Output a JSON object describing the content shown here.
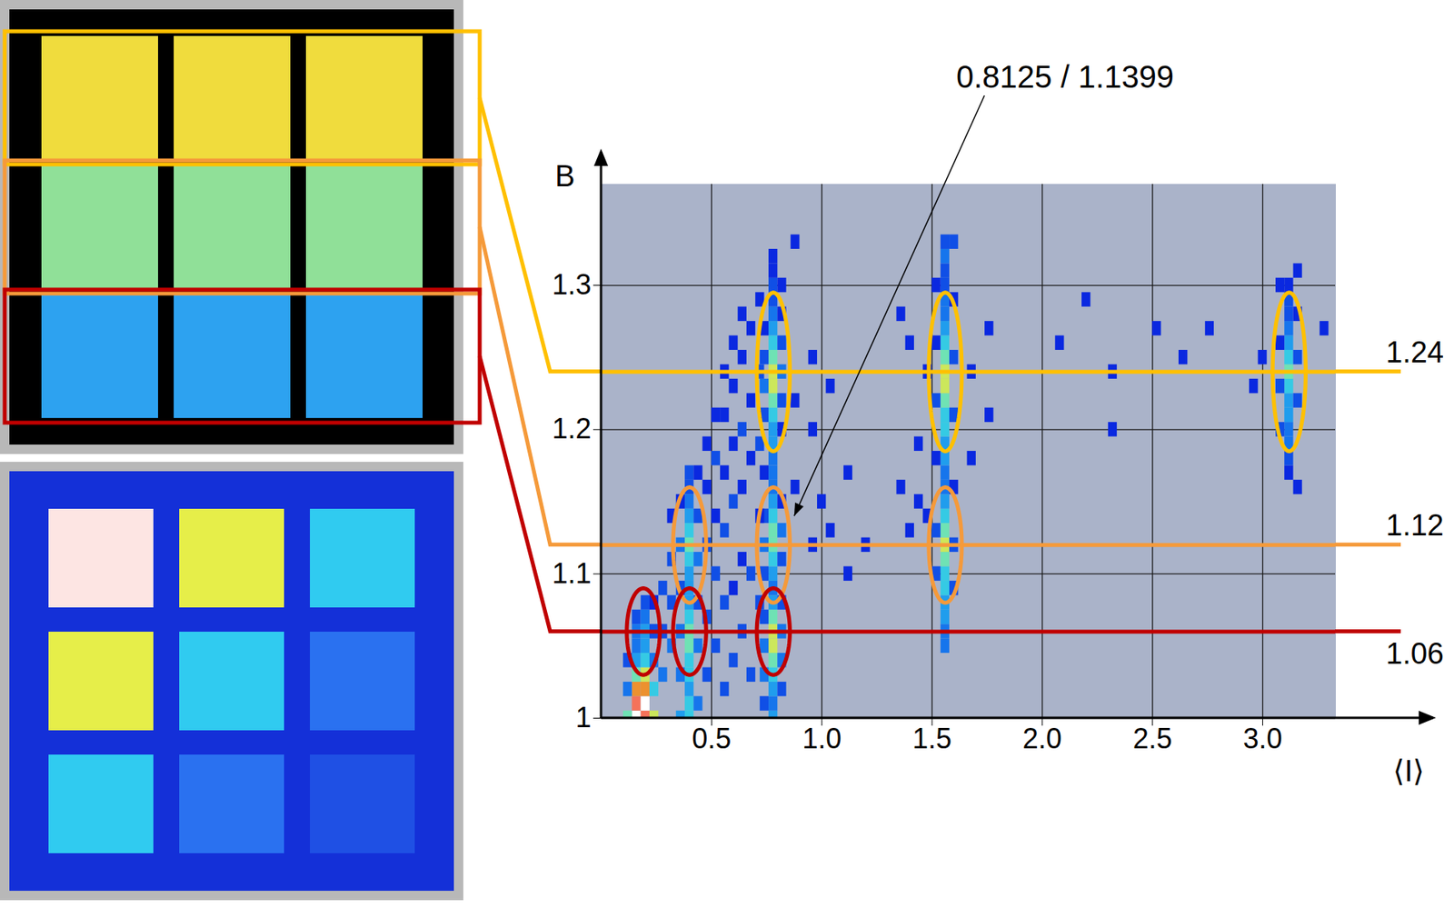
{
  "chart_data": {
    "type": "heatmap",
    "xlabel": "⟨I⟩",
    "ylabel": "B",
    "xlim": [
      0,
      3.33
    ],
    "ylim": [
      1,
      1.37
    ],
    "xticks": [
      0.5,
      {
        "value": 1,
        "label": "1.0"
      },
      1.5,
      {
        "value": 2,
        "label": "2.0"
      },
      2.5,
      {
        "value": 3,
        "label": "3.0"
      }
    ],
    "yticks": [
      1,
      1.1,
      1.2,
      1.3
    ],
    "grid": true,
    "cell_width": 0.04,
    "cell_height": 0.01,
    "cell_range": [
      1,
      10
    ],
    "cells": [
      [
        0.78,
        1.0,
        4
      ],
      [
        0.78,
        1.01,
        3
      ],
      [
        0.78,
        1.02,
        4
      ],
      [
        0.78,
        1.03,
        5
      ],
      [
        0.78,
        1.04,
        6
      ],
      [
        0.78,
        1.05,
        7
      ],
      [
        0.78,
        1.06,
        7
      ],
      [
        0.78,
        1.07,
        6
      ],
      [
        0.78,
        1.08,
        4
      ],
      [
        0.78,
        1.09,
        3
      ],
      [
        0.78,
        1.1,
        4
      ],
      [
        0.78,
        1.11,
        5
      ],
      [
        0.78,
        1.12,
        6
      ],
      [
        0.78,
        1.13,
        6
      ],
      [
        0.78,
        1.14,
        5
      ],
      [
        0.78,
        1.15,
        4
      ],
      [
        0.78,
        1.16,
        3
      ],
      [
        0.78,
        1.17,
        3
      ],
      [
        0.78,
        1.18,
        3
      ],
      [
        0.78,
        1.19,
        4
      ],
      [
        0.78,
        1.2,
        4
      ],
      [
        0.78,
        1.21,
        5
      ],
      [
        0.78,
        1.22,
        6
      ],
      [
        0.78,
        1.23,
        7
      ],
      [
        0.78,
        1.24,
        7
      ],
      [
        0.78,
        1.25,
        6
      ],
      [
        0.78,
        1.26,
        5
      ],
      [
        0.78,
        1.27,
        4
      ],
      [
        0.78,
        1.28,
        3
      ],
      [
        0.78,
        1.29,
        2
      ],
      [
        0.78,
        1.3,
        2
      ],
      [
        0.78,
        1.31,
        1
      ],
      [
        0.78,
        1.32,
        1
      ],
      [
        0.74,
        1.01,
        2
      ],
      [
        0.74,
        1.03,
        3
      ],
      [
        0.74,
        1.05,
        3
      ],
      [
        0.74,
        1.07,
        2
      ],
      [
        0.74,
        1.1,
        2
      ],
      [
        0.74,
        1.12,
        3
      ],
      [
        0.74,
        1.14,
        2
      ],
      [
        0.74,
        1.17,
        1
      ],
      [
        0.74,
        1.21,
        2
      ],
      [
        0.74,
        1.23,
        3
      ],
      [
        0.74,
        1.25,
        2
      ],
      [
        0.74,
        1.27,
        1
      ],
      [
        0.82,
        1.02,
        2
      ],
      [
        0.82,
        1.04,
        3
      ],
      [
        0.82,
        1.06,
        3
      ],
      [
        0.82,
        1.08,
        2
      ],
      [
        0.82,
        1.11,
        2
      ],
      [
        0.82,
        1.13,
        3
      ],
      [
        0.82,
        1.15,
        1
      ],
      [
        0.82,
        1.2,
        1
      ],
      [
        0.82,
        1.22,
        2
      ],
      [
        0.82,
        1.24,
        3
      ],
      [
        0.82,
        1.26,
        2
      ],
      [
        0.82,
        1.28,
        1
      ],
      [
        0.82,
        1.3,
        1
      ],
      [
        1.56,
        1.05,
        3
      ],
      [
        1.56,
        1.06,
        3
      ],
      [
        1.56,
        1.07,
        4
      ],
      [
        1.56,
        1.08,
        4
      ],
      [
        1.56,
        1.09,
        5
      ],
      [
        1.56,
        1.1,
        5
      ],
      [
        1.56,
        1.11,
        6
      ],
      [
        1.56,
        1.12,
        7
      ],
      [
        1.56,
        1.13,
        6
      ],
      [
        1.56,
        1.14,
        5
      ],
      [
        1.56,
        1.15,
        4
      ],
      [
        1.56,
        1.16,
        3
      ],
      [
        1.56,
        1.17,
        3
      ],
      [
        1.56,
        1.18,
        4
      ],
      [
        1.56,
        1.19,
        4
      ],
      [
        1.56,
        1.2,
        5
      ],
      [
        1.56,
        1.21,
        5
      ],
      [
        1.56,
        1.22,
        6
      ],
      [
        1.56,
        1.23,
        7
      ],
      [
        1.56,
        1.24,
        7
      ],
      [
        1.56,
        1.25,
        6
      ],
      [
        1.56,
        1.26,
        5
      ],
      [
        1.56,
        1.27,
        4
      ],
      [
        1.56,
        1.28,
        3
      ],
      [
        1.56,
        1.29,
        3
      ],
      [
        1.56,
        1.3,
        2
      ],
      [
        1.56,
        1.31,
        2
      ],
      [
        1.56,
        1.32,
        3
      ],
      [
        1.56,
        1.33,
        2
      ],
      [
        1.52,
        1.1,
        2
      ],
      [
        1.52,
        1.13,
        2
      ],
      [
        1.52,
        1.18,
        1
      ],
      [
        1.52,
        1.22,
        2
      ],
      [
        1.52,
        1.26,
        1
      ],
      [
        1.52,
        1.3,
        1
      ],
      [
        1.6,
        1.09,
        2
      ],
      [
        1.6,
        1.12,
        2
      ],
      [
        1.6,
        1.16,
        1
      ],
      [
        1.6,
        1.21,
        2
      ],
      [
        1.6,
        1.25,
        2
      ],
      [
        1.6,
        1.29,
        1
      ],
      [
        1.6,
        1.33,
        2
      ],
      [
        3.12,
        1.17,
        1
      ],
      [
        3.12,
        1.18,
        2
      ],
      [
        3.12,
        1.19,
        3
      ],
      [
        3.12,
        1.2,
        3
      ],
      [
        3.12,
        1.21,
        4
      ],
      [
        3.12,
        1.22,
        4
      ],
      [
        3.12,
        1.23,
        5
      ],
      [
        3.12,
        1.24,
        6
      ],
      [
        3.12,
        1.25,
        5
      ],
      [
        3.12,
        1.26,
        4
      ],
      [
        3.12,
        1.27,
        3
      ],
      [
        3.12,
        1.28,
        2
      ],
      [
        3.12,
        1.29,
        2
      ],
      [
        3.12,
        1.3,
        1
      ],
      [
        3.08,
        1.2,
        2
      ],
      [
        3.08,
        1.23,
        2
      ],
      [
        3.08,
        1.26,
        1
      ],
      [
        3.08,
        1.3,
        1
      ],
      [
        3.16,
        1.16,
        1
      ],
      [
        3.16,
        1.22,
        2
      ],
      [
        3.16,
        1.25,
        2
      ],
      [
        3.16,
        1.28,
        1
      ],
      [
        3.16,
        1.31,
        1
      ],
      [
        0.4,
        1.0,
        5
      ],
      [
        0.4,
        1.01,
        5
      ],
      [
        0.4,
        1.02,
        4
      ],
      [
        0.4,
        1.03,
        5
      ],
      [
        0.4,
        1.04,
        5
      ],
      [
        0.4,
        1.05,
        6
      ],
      [
        0.4,
        1.06,
        6
      ],
      [
        0.4,
        1.07,
        5
      ],
      [
        0.4,
        1.08,
        4
      ],
      [
        0.4,
        1.09,
        4
      ],
      [
        0.4,
        1.1,
        4
      ],
      [
        0.4,
        1.11,
        5
      ],
      [
        0.4,
        1.12,
        6
      ],
      [
        0.4,
        1.13,
        5
      ],
      [
        0.4,
        1.14,
        4
      ],
      [
        0.4,
        1.15,
        3
      ],
      [
        0.4,
        1.16,
        2
      ],
      [
        0.4,
        1.17,
        2
      ],
      [
        0.36,
        1.0,
        4
      ],
      [
        0.36,
        1.03,
        3
      ],
      [
        0.36,
        1.06,
        3
      ],
      [
        0.36,
        1.09,
        2
      ],
      [
        0.36,
        1.12,
        3
      ],
      [
        0.36,
        1.15,
        1
      ],
      [
        0.44,
        1.01,
        3
      ],
      [
        0.44,
        1.05,
        3
      ],
      [
        0.44,
        1.08,
        2
      ],
      [
        0.44,
        1.11,
        3
      ],
      [
        0.44,
        1.14,
        2
      ],
      [
        0.44,
        1.17,
        1
      ],
      [
        0.16,
        1.0,
        10
      ],
      [
        0.16,
        1.01,
        9
      ],
      [
        0.16,
        1.02,
        8
      ],
      [
        0.16,
        1.03,
        6
      ],
      [
        0.16,
        1.04,
        4
      ],
      [
        0.16,
        1.05,
        3
      ],
      [
        0.16,
        1.06,
        3
      ],
      [
        0.16,
        1.07,
        2
      ],
      [
        0.2,
        1.0,
        9
      ],
      [
        0.2,
        1.01,
        10
      ],
      [
        0.2,
        1.02,
        8
      ],
      [
        0.2,
        1.03,
        7
      ],
      [
        0.2,
        1.04,
        5
      ],
      [
        0.2,
        1.05,
        4
      ],
      [
        0.2,
        1.06,
        4
      ],
      [
        0.2,
        1.07,
        3
      ],
      [
        0.2,
        1.08,
        2
      ],
      [
        0.24,
        1.0,
        7
      ],
      [
        0.24,
        1.02,
        5
      ],
      [
        0.24,
        1.04,
        3
      ],
      [
        0.24,
        1.06,
        2
      ],
      [
        0.24,
        1.08,
        1
      ],
      [
        0.12,
        1.0,
        6
      ],
      [
        0.12,
        1.02,
        3
      ],
      [
        0.12,
        1.04,
        2
      ],
      [
        0.28,
        1.03,
        3
      ],
      [
        0.28,
        1.06,
        2
      ],
      [
        0.28,
        1.09,
        2
      ],
      [
        0.32,
        1.05,
        3
      ],
      [
        0.32,
        1.08,
        2
      ],
      [
        0.32,
        1.11,
        2
      ],
      [
        0.32,
        1.14,
        1
      ],
      [
        0.48,
        1.03,
        2
      ],
      [
        0.48,
        1.07,
        2
      ],
      [
        0.48,
        1.12,
        2
      ],
      [
        0.48,
        1.16,
        1
      ],
      [
        0.48,
        1.19,
        1
      ],
      [
        0.52,
        1.05,
        2
      ],
      [
        0.52,
        1.1,
        2
      ],
      [
        0.52,
        1.14,
        1
      ],
      [
        0.52,
        1.18,
        2
      ],
      [
        0.52,
        1.21,
        1
      ],
      [
        0.56,
        1.02,
        2
      ],
      [
        0.56,
        1.08,
        2
      ],
      [
        0.56,
        1.13,
        2
      ],
      [
        0.56,
        1.17,
        1
      ],
      [
        0.56,
        1.21,
        1
      ],
      [
        0.56,
        1.24,
        1
      ],
      [
        0.6,
        1.04,
        2
      ],
      [
        0.6,
        1.09,
        1
      ],
      [
        0.6,
        1.15,
        2
      ],
      [
        0.6,
        1.19,
        1
      ],
      [
        0.6,
        1.23,
        1
      ],
      [
        0.6,
        1.26,
        1
      ],
      [
        0.64,
        1.06,
        2
      ],
      [
        0.64,
        1.11,
        1
      ],
      [
        0.64,
        1.16,
        1
      ],
      [
        0.64,
        1.2,
        2
      ],
      [
        0.64,
        1.25,
        1
      ],
      [
        0.64,
        1.28,
        1
      ],
      [
        0.68,
        1.03,
        2
      ],
      [
        0.68,
        1.1,
        2
      ],
      [
        0.68,
        1.18,
        1
      ],
      [
        0.68,
        1.22,
        1
      ],
      [
        0.68,
        1.27,
        1
      ],
      [
        0.72,
        1.08,
        2
      ],
      [
        0.72,
        1.14,
        1
      ],
      [
        0.72,
        1.19,
        2
      ],
      [
        0.72,
        1.24,
        2
      ],
      [
        0.72,
        1.29,
        1
      ],
      [
        0.88,
        1.16,
        1
      ],
      [
        0.88,
        1.22,
        1
      ],
      [
        0.88,
        1.33,
        1
      ],
      [
        0.96,
        1.12,
        1
      ],
      [
        0.96,
        1.2,
        1
      ],
      [
        0.96,
        1.25,
        1
      ],
      [
        1.0,
        1.15,
        1
      ],
      [
        1.04,
        1.13,
        1
      ],
      [
        1.04,
        1.23,
        1
      ],
      [
        1.12,
        1.1,
        1
      ],
      [
        1.12,
        1.17,
        1
      ],
      [
        1.2,
        1.12,
        1
      ],
      [
        1.36,
        1.16,
        1
      ],
      [
        1.36,
        1.28,
        1
      ],
      [
        1.4,
        1.13,
        1
      ],
      [
        1.4,
        1.26,
        1
      ],
      [
        1.44,
        1.15,
        1
      ],
      [
        1.44,
        1.19,
        1
      ],
      [
        1.48,
        1.14,
        1
      ],
      [
        1.48,
        1.24,
        1
      ],
      [
        1.68,
        1.18,
        1
      ],
      [
        1.68,
        1.24,
        1
      ],
      [
        1.76,
        1.21,
        1
      ],
      [
        1.76,
        1.27,
        1
      ],
      [
        2.08,
        1.26,
        1
      ],
      [
        2.2,
        1.29,
        1
      ],
      [
        2.32,
        1.2,
        1
      ],
      [
        2.32,
        1.24,
        1
      ],
      [
        2.52,
        1.27,
        1
      ],
      [
        2.64,
        1.25,
        1
      ],
      [
        2.76,
        1.27,
        1
      ],
      [
        2.96,
        1.23,
        1
      ],
      [
        3.0,
        1.25,
        1
      ],
      [
        3.28,
        1.27,
        1
      ]
    ],
    "levels": [
      {
        "value": 1.24,
        "color": "#ffc000",
        "peaks": [
          0.78,
          1.56,
          3.12
        ]
      },
      {
        "value": 1.12,
        "color": "#f59a3a",
        "peaks": [
          0.4,
          0.78,
          1.56
        ]
      },
      {
        "value": 1.06,
        "color": "#c00000",
        "peaks": [
          0.19,
          0.4,
          0.78
        ]
      }
    ],
    "annotation": {
      "text": "0.8125 / 1.1399",
      "x": 0.8125,
      "y": 1.1399
    },
    "images": [
      {
        "values": [
          [
            1.7,
            1.7,
            1.7
          ],
          [
            1.2,
            1.2,
            1.2
          ],
          [
            0.6,
            0.6,
            0.6
          ]
        ]
      },
      {
        "values": [
          [
            3.12,
            1.56,
            0.78
          ],
          [
            1.56,
            0.78,
            0.39
          ],
          [
            0.78,
            0.39,
            0.19
          ]
        ]
      }
    ],
    "image_color_range": [
      0,
      3.2
    ]
  }
}
